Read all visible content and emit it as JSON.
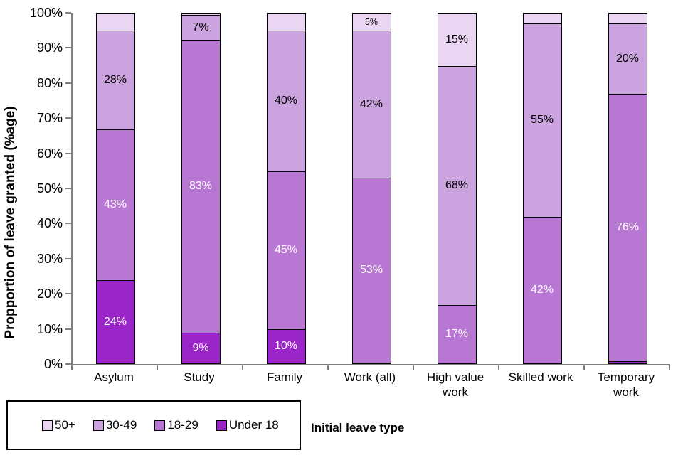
{
  "chart_data": {
    "type": "stacked-bar",
    "title": "",
    "ylabel": "Propportion of leave granted (%age)",
    "xlabel": "Initial leave type",
    "ylim": [
      0,
      100
    ],
    "ytick_values": [
      0,
      10,
      20,
      30,
      40,
      50,
      60,
      70,
      80,
      90,
      100
    ],
    "ytick_labels": [
      "0%",
      "10%",
      "20%",
      "30%",
      "40%",
      "50%",
      "60%",
      "70%",
      "80%",
      "90%",
      "100%"
    ],
    "categories": [
      "Asylum",
      "Study",
      "Family",
      "Work (all)",
      "High value work",
      "Skilled work",
      "Temporary work"
    ],
    "legend": [
      {
        "name": "50+",
        "color": "#EAD5F2"
      },
      {
        "name": "30-49",
        "color": "#CBA3DE"
      },
      {
        "name": "18-29",
        "color": "#B877D3"
      },
      {
        "name": "Under 18",
        "color": "#9A26C9"
      }
    ],
    "series": [
      {
        "name": "Under 18",
        "color": "#9A26C9",
        "label_color": "#FFFFFF",
        "values": [
          24,
          9,
          10,
          0.5,
          0,
          0,
          1
        ],
        "labels": [
          "24%",
          "9%",
          "10%",
          "",
          "",
          "",
          ""
        ]
      },
      {
        "name": "18-29",
        "color": "#B877D3",
        "label_color": "#FFFFFF",
        "values": [
          43,
          83,
          45,
          53,
          17,
          42,
          76
        ],
        "labels": [
          "43%",
          "83%",
          "45%",
          "53%",
          "17%",
          "42%",
          "76%"
        ]
      },
      {
        "name": "30-49",
        "color": "#CBA3DE",
        "label_color": "#000000",
        "values": [
          28,
          7,
          40,
          42,
          68,
          55,
          20
        ],
        "labels": [
          "28%",
          "7%",
          "40%",
          "42%",
          "68%",
          "55%",
          "20%"
        ]
      },
      {
        "name": "50+",
        "color": "#EAD5F2",
        "label_color": "#000000",
        "values": [
          5,
          0.5,
          5,
          5,
          15,
          3,
          3
        ],
        "labels": [
          "",
          "",
          "",
          "5%",
          "15%",
          "",
          ""
        ]
      }
    ],
    "axis_color": "#808080",
    "segment_border_color": "#000000"
  }
}
